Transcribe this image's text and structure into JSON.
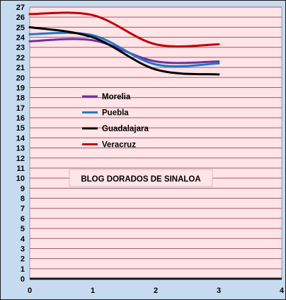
{
  "chart_data": {
    "type": "line",
    "smooth": true,
    "title": "",
    "xlabel": "",
    "ylabel": "",
    "xlim": [
      0,
      4
    ],
    "ylim": [
      0,
      27
    ],
    "x_ticks": [
      0,
      1,
      2,
      3,
      4
    ],
    "y_ticks": [
      0,
      1,
      2,
      3,
      4,
      5,
      6,
      7,
      8,
      9,
      10,
      11,
      12,
      13,
      14,
      15,
      16,
      17,
      18,
      19,
      20,
      21,
      22,
      23,
      24,
      25,
      26,
      27
    ],
    "grid": "horizontal",
    "legend_position": "center-left",
    "series": [
      {
        "name": "Morelia",
        "color": "#7030a0",
        "x": [
          0,
          1,
          2,
          3
        ],
        "values": [
          23.6,
          23.7,
          21.6,
          21.6
        ]
      },
      {
        "name": "Puebla",
        "color": "#1f78c8",
        "x": [
          0,
          1,
          2,
          3
        ],
        "values": [
          24.3,
          24.2,
          21.3,
          21.4
        ]
      },
      {
        "name": "Guadalajara",
        "color": "#000000",
        "x": [
          0,
          1,
          2,
          3
        ],
        "values": [
          25.0,
          24.0,
          20.8,
          20.3
        ]
      },
      {
        "name": "Veracruz",
        "color": "#c00000",
        "x": [
          0,
          1,
          2,
          3
        ],
        "values": [
          26.3,
          26.2,
          23.3,
          23.3
        ]
      }
    ],
    "annotation": "BLOG DORADOS DE SINALOA",
    "colors": {
      "outer_background": "#c6dbf0",
      "plot_background": "#ffe4e8",
      "gridline": "#a05a6a",
      "frame": "#1a1a1a"
    }
  }
}
